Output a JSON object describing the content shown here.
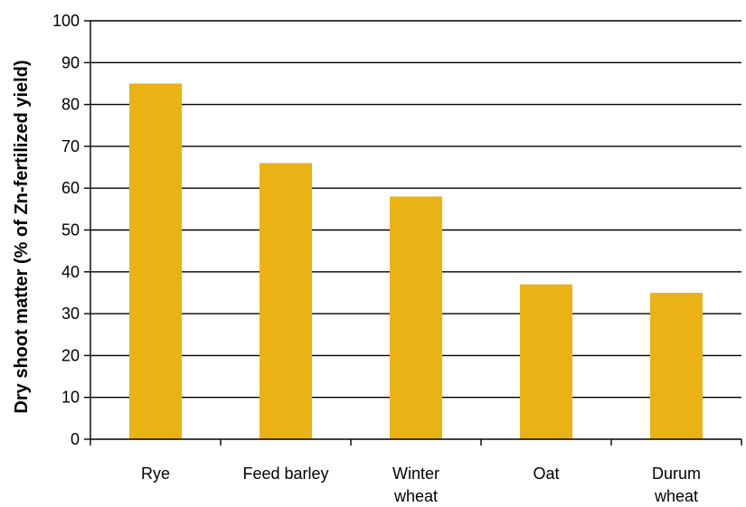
{
  "chart_data": {
    "type": "bar",
    "categories": [
      [
        "Rye"
      ],
      [
        "Feed barley"
      ],
      [
        "Winter",
        "wheat"
      ],
      [
        "Oat"
      ],
      [
        "Durum",
        "wheat"
      ]
    ],
    "values": [
      85,
      66,
      58,
      37,
      35
    ],
    "ylabel": "Dry shoot matter (% of Zn-fertilized yield)",
    "xlabel": "",
    "title": "",
    "ylim": [
      0,
      100
    ],
    "yticks": [
      0,
      10,
      20,
      30,
      40,
      50,
      60,
      70,
      80,
      90,
      100
    ],
    "grid": true,
    "legend": "none",
    "bar_color": "#EBB215"
  }
}
